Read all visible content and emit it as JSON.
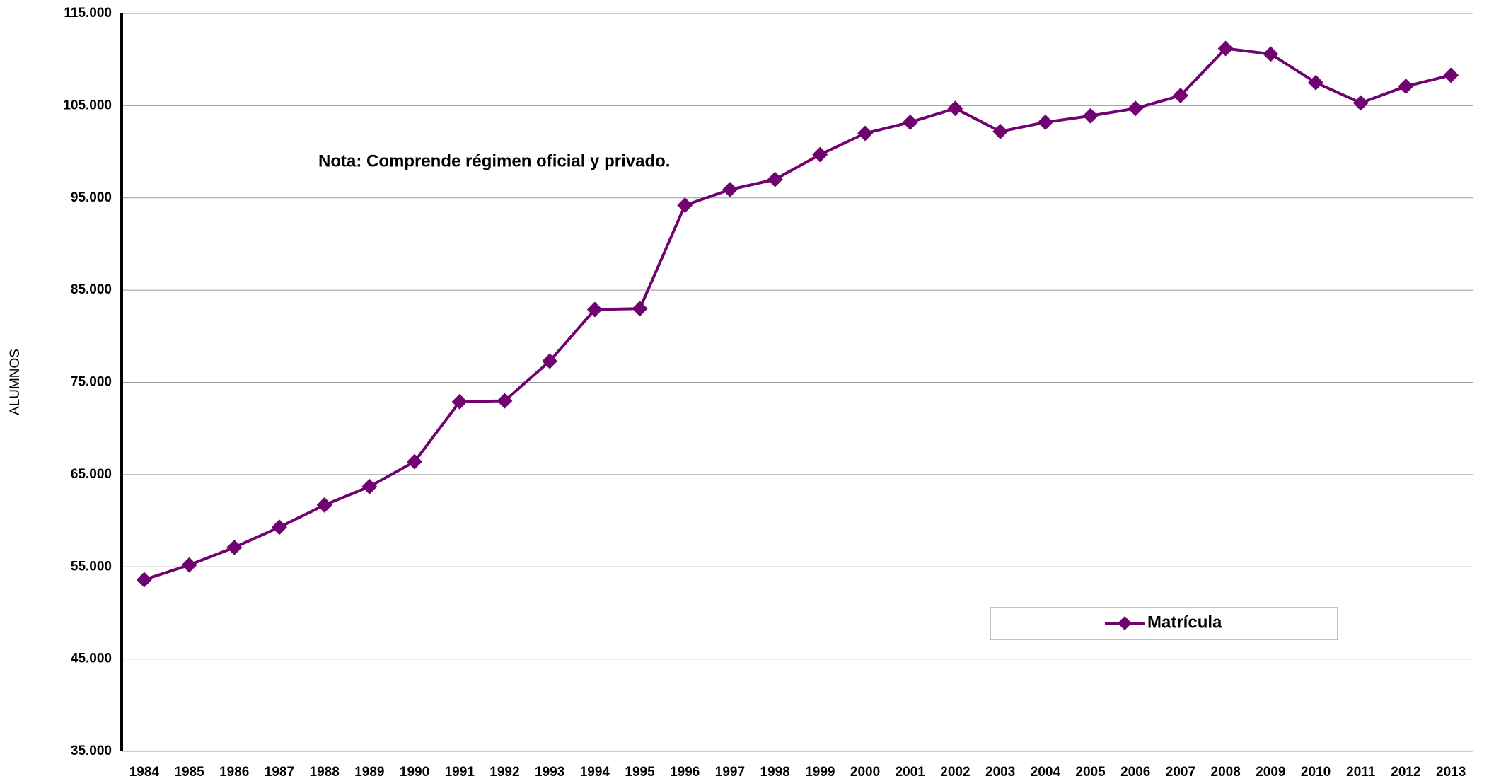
{
  "chart_data": {
    "type": "line",
    "y_label": "ALUMNOS",
    "annotation": "Nota: Comprende régimen oficial y privado.",
    "categories": [
      "1984",
      "1985",
      "1986",
      "1987",
      "1988",
      "1989",
      "1990",
      "1991",
      "1992",
      "1993",
      "1994",
      "1995",
      "1996",
      "1997",
      "1998",
      "1999",
      "2000",
      "2001",
      "2002",
      "2003",
      "2004",
      "2005",
      "2006",
      "2007",
      "2008",
      "2009",
      "2010",
      "2011",
      "2012",
      "2013"
    ],
    "series": [
      {
        "name": "Matrícula",
        "color": "#70036f",
        "values": [
          53600,
          55200,
          57100,
          59300,
          61700,
          63700,
          66400,
          72900,
          73000,
          77300,
          82900,
          83000,
          94200,
          95900,
          97000,
          99700,
          102000,
          103200,
          104700,
          102200,
          103200,
          103900,
          104700,
          106100,
          111200,
          110600,
          107500,
          105300,
          107100,
          108300
        ]
      }
    ],
    "ylim": [
      35000,
      115000
    ],
    "yticks": [
      {
        "value": 35000,
        "label": "35.000"
      },
      {
        "value": 45000,
        "label": "45.000"
      },
      {
        "value": 55000,
        "label": "55.000"
      },
      {
        "value": 65000,
        "label": "65.000"
      },
      {
        "value": 75000,
        "label": "75.000"
      },
      {
        "value": 85000,
        "label": "85.000"
      },
      {
        "value": 95000,
        "label": "95.000"
      },
      {
        "value": 105000,
        "label": "105.000"
      },
      {
        "value": 115000,
        "label": "115.000"
      }
    ],
    "grid": true
  }
}
